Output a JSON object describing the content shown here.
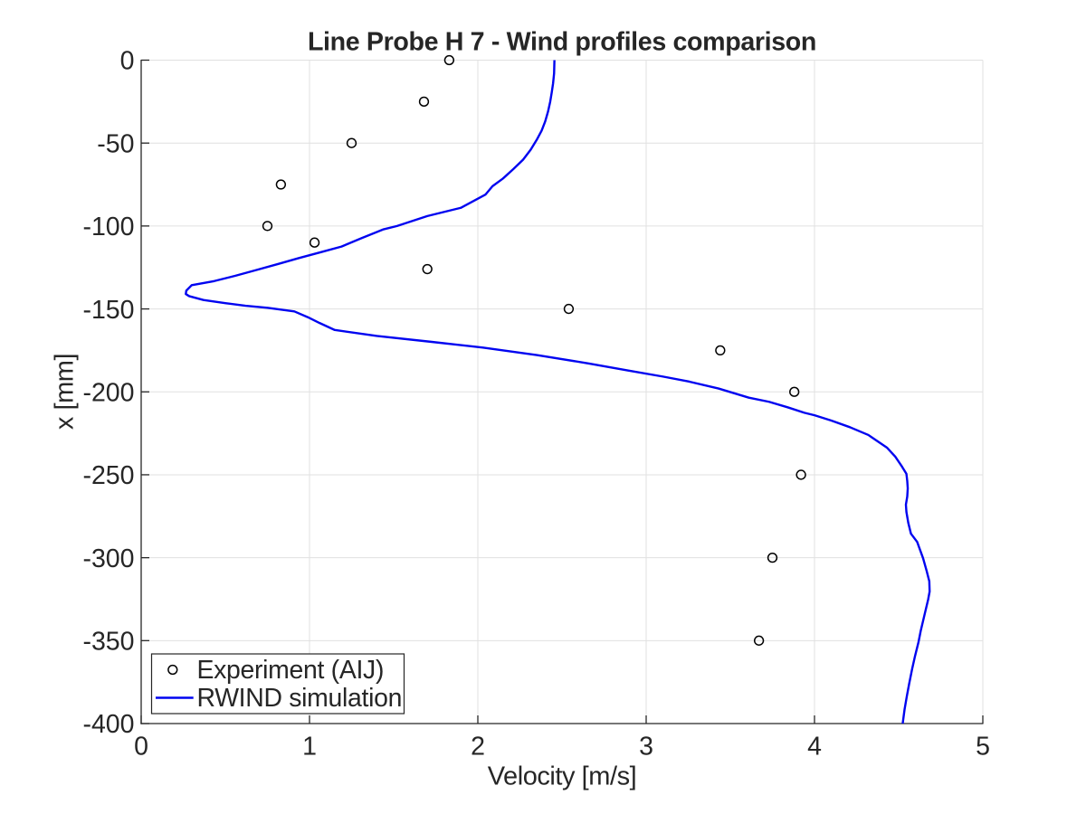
{
  "chart_data": {
    "type": "line",
    "title": "Line Probe H 7 - Wind profiles comparison",
    "xlabel": "Velocity [m/s]",
    "ylabel": "x [mm]",
    "xlim": [
      0,
      5
    ],
    "ylim": [
      -400,
      0
    ],
    "xticks": [
      0,
      1,
      2,
      3,
      4,
      5
    ],
    "yticks": [
      0,
      -50,
      -100,
      -150,
      -200,
      -250,
      -300,
      -350,
      -400
    ],
    "grid": true,
    "legend_position": "bottom-left",
    "colors": {
      "background": "#ffffff",
      "grid": "#e0e0e0",
      "axis": "#262626",
      "text": "#262626",
      "experiment_marker": "#000000",
      "simulation_line": "#0004f0"
    },
    "series": [
      {
        "name": "Experiment (AIJ)",
        "type": "scatter",
        "marker": "circle",
        "color": "#000000",
        "x": [
          1.83,
          1.68,
          1.25,
          0.83,
          0.75,
          1.03,
          1.7,
          2.54,
          3.44,
          3.88,
          3.92,
          3.75,
          3.67
        ],
        "y": [
          0,
          -25,
          -50,
          -75,
          -100,
          -110,
          -126,
          -150,
          -175,
          -200,
          -250,
          -300,
          -350
        ]
      },
      {
        "name": "RWIND simulation",
        "type": "line",
        "color": "#0004f0",
        "x": [
          2.455,
          2.453,
          2.447,
          2.439,
          2.43,
          2.417,
          2.4,
          2.379,
          2.35,
          2.314,
          2.269,
          2.212,
          2.149,
          2.087,
          2.046,
          1.9,
          1.7,
          1.52,
          1.44,
          1.31,
          1.19,
          1.06,
          0.935,
          0.81,
          0.685,
          0.56,
          0.434,
          0.3,
          0.268,
          0.265,
          0.285,
          0.37,
          0.5,
          0.62,
          0.75,
          0.91,
          0.99,
          1.06,
          1.15,
          1.4,
          1.72,
          2.03,
          2.35,
          2.66,
          2.89,
          3.1,
          3.25,
          3.43,
          3.61,
          3.73,
          3.84,
          3.94,
          4.0,
          4.1,
          4.21,
          4.32,
          4.34,
          4.43,
          4.48,
          4.52,
          4.546,
          4.551,
          4.554,
          4.551,
          4.543,
          4.546,
          4.557,
          4.573,
          4.61,
          4.645,
          4.666,
          4.682,
          4.684,
          4.675,
          4.652,
          4.631,
          4.618,
          4.597,
          4.58,
          4.562,
          4.548,
          4.535,
          4.525,
          4.524
        ],
        "y": [
          0,
          -8,
          -14,
          -19.5,
          -25,
          -31,
          -37,
          -42.5,
          -48,
          -54,
          -60,
          -65.6,
          -71.4,
          -76,
          -81,
          -89,
          -94,
          -100,
          -102,
          -107.3,
          -112.4,
          -116,
          -119.4,
          -123,
          -126.5,
          -130,
          -133.2,
          -135.7,
          -139,
          -141,
          -142.3,
          -144.6,
          -146.5,
          -148.1,
          -149.3,
          -151.5,
          -155,
          -158.5,
          -162.7,
          -166.3,
          -169.8,
          -173.3,
          -177.8,
          -182.9,
          -187.1,
          -190.8,
          -193.7,
          -198,
          -203.5,
          -206,
          -209.3,
          -212.6,
          -214.1,
          -217.3,
          -221.3,
          -226,
          -227.4,
          -233.6,
          -239.1,
          -245.1,
          -249.4,
          -253.8,
          -258.2,
          -263.1,
          -268,
          -272.4,
          -278.9,
          -285.5,
          -290.5,
          -300.3,
          -307.9,
          -314.2,
          -320.4,
          -325.3,
          -335.1,
          -344.1,
          -350.8,
          -359.4,
          -367.1,
          -376.2,
          -383.8,
          -391.5,
          -399.2,
          -400
        ]
      }
    ],
    "legend": {
      "entries": [
        "Experiment (AIJ)",
        "RWIND simulation"
      ]
    }
  }
}
